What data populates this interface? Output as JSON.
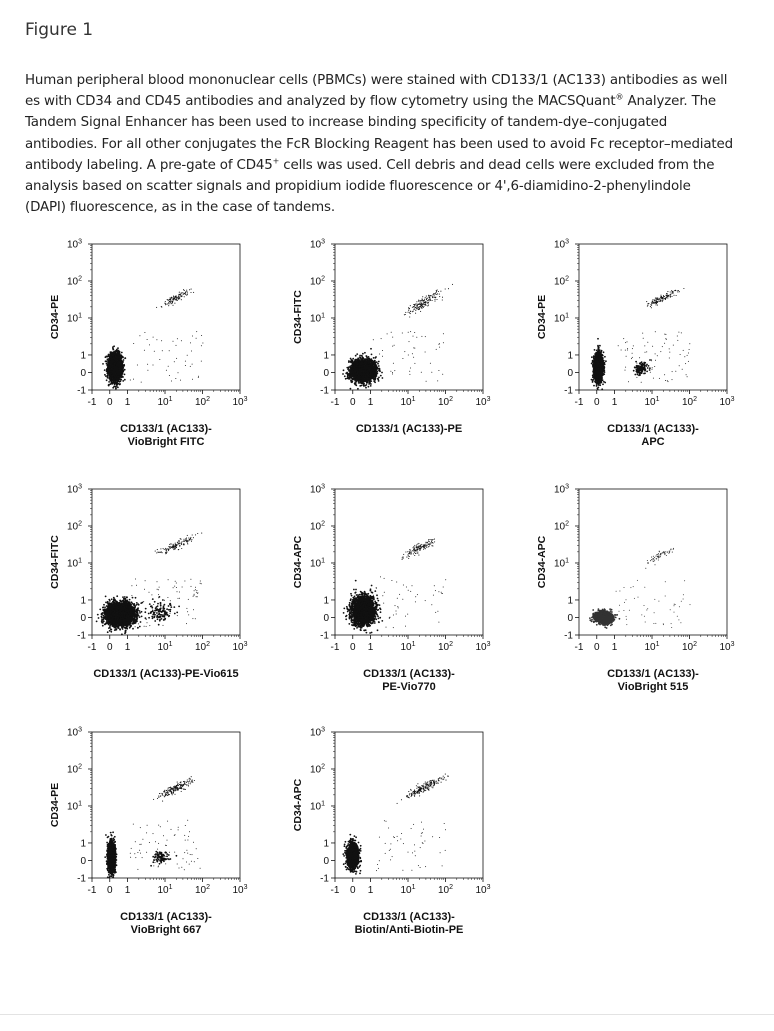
{
  "figure": {
    "title": "Figure 1",
    "caption_lines": [
      "Human peripheral blood mononuclear cells (PBMCs) were stained with CD133/1 (AC133) antibodies as well",
      "es with CD34 and CD45 antibodies and analyzed by flow cytometry using the MACSQuant",
      " Analyzer. The",
      "Tandem Signal Enhancer has been used to increase binding specificity of tandem-dye–conjugated",
      "antibodies. For all other conjugates the FcR Blocking Reagent has been used to avoid Fc receptor–mediated",
      "antibody labeling. A pre-gate of CD45",
      " cells was used. Cell debris and dead cells were excluded from the",
      "analysis based on scatter signals and propidium iodide fluorescence or 4',6-diamidino-2-phenylindole",
      "(DAPI) fluorescence, as in the case of tandems."
    ],
    "sup_registered": "®",
    "sup_plus": "+"
  },
  "axis": {
    "y_ticks": [
      {
        "value": -1,
        "text": "-1"
      },
      {
        "value": 0,
        "text": "0"
      },
      {
        "value": 1,
        "text": "1"
      },
      {
        "value": 10,
        "text": "10",
        "exp": "1"
      },
      {
        "value": 100,
        "text": "10",
        "exp": "2"
      },
      {
        "value": 1000,
        "text": "10",
        "exp": "3"
      }
    ],
    "x_ticks": [
      {
        "value": -1,
        "text": "-1"
      },
      {
        "value": 0,
        "text": "0"
      },
      {
        "value": 1,
        "text": "1"
      },
      {
        "value": 10,
        "text": "10",
        "exp": "1"
      },
      {
        "value": 100,
        "text": "10",
        "exp": "2"
      },
      {
        "value": 1000,
        "text": "10",
        "exp": "3"
      }
    ]
  },
  "chart_data": [
    {
      "type": "scatter",
      "ylabel": "CD34-PE",
      "xlabel": [
        "CD133/1 (AC133)-",
        "VioBright FITC"
      ],
      "xlim": [
        -1,
        1000
      ],
      "ylim": [
        -1,
        1000
      ],
      "populations": [
        {
          "cx": 0.3,
          "cy": 0.3,
          "sx": 0.55,
          "sy": 1.1,
          "count": 2600
        },
        {
          "cx": 20,
          "cy": 35,
          "sx": 0.55,
          "sy": 0.35,
          "count": 110,
          "spread": "diag"
        }
      ],
      "color": "#111111"
    },
    {
      "type": "scatter",
      "ylabel": "CD34-FITC",
      "xlabel": [
        "CD133/1 (AC133)-PE"
      ],
      "xlim": [
        -1,
        1000
      ],
      "ylim": [
        -1,
        1000
      ],
      "populations": [
        {
          "cx": 0.6,
          "cy": 0.1,
          "sx": 1.0,
          "sy": 0.9,
          "count": 2600
        },
        {
          "cx": 25,
          "cy": 25,
          "sx": 0.7,
          "sy": 0.5,
          "count": 170,
          "spread": "diag"
        }
      ],
      "color": "#111111"
    },
    {
      "type": "scatter",
      "ylabel": "CD34-PE",
      "xlabel": [
        "CD133/1 (AC133)-",
        "APC"
      ],
      "xlim": [
        -1,
        1000
      ],
      "ylim": [
        -1,
        1000
      ],
      "populations": [
        {
          "cx": 0.1,
          "cy": 0.3,
          "sx": 0.35,
          "sy": 1.1,
          "count": 2400
        },
        {
          "cx": 20,
          "cy": 35,
          "sx": 0.6,
          "sy": 0.35,
          "count": 140,
          "spread": "diag"
        },
        {
          "cx": 5,
          "cy": 0.2,
          "sx": 0.6,
          "sy": 0.6,
          "count": 120
        }
      ],
      "color": "#111111"
    },
    {
      "type": "scatter",
      "ylabel": "CD34-FITC",
      "xlabel": [
        "CD133/1 (AC133)-PE-Vio615"
      ],
      "xlim": [
        -1,
        1000
      ],
      "ylim": [
        -1,
        1000
      ],
      "populations": [
        {
          "cx": 0.6,
          "cy": 0.2,
          "sx": 1.2,
          "sy": 1.0,
          "count": 3000
        },
        {
          "cx": 20,
          "cy": 30,
          "sx": 0.7,
          "sy": 0.4,
          "count": 130,
          "spread": "diag"
        },
        {
          "cx": 8,
          "cy": 0.3,
          "sx": 1.1,
          "sy": 0.8,
          "count": 120
        }
      ],
      "color": "#111111"
    },
    {
      "type": "scatter",
      "ylabel": "CD34-APC",
      "xlabel": [
        "CD133/1 (AC133)-",
        "PE-Vio770"
      ],
      "xlim": [
        -1,
        1000
      ],
      "ylim": [
        -1,
        1000
      ],
      "populations": [
        {
          "cx": 0.6,
          "cy": 0.4,
          "sx": 0.95,
          "sy": 1.15,
          "count": 2800
        },
        {
          "cx": 20,
          "cy": 25,
          "sx": 0.6,
          "sy": 0.4,
          "count": 140,
          "spread": "diag"
        }
      ],
      "color": "#111111"
    },
    {
      "type": "scatter",
      "ylabel": "CD34-APC",
      "xlabel": [
        "CD133/1 (AC133)-",
        "VioBright 515"
      ],
      "xlim": [
        -1,
        1000
      ],
      "ylim": [
        -1,
        1000
      ],
      "populations": [
        {
          "cx": 0.4,
          "cy": 0.0,
          "sx": 0.7,
          "sy": 0.5,
          "count": 1400
        },
        {
          "cx": 15,
          "cy": 15,
          "sx": 0.6,
          "sy": 0.4,
          "count": 60,
          "spread": "diag"
        }
      ],
      "color": "#333333"
    },
    {
      "type": "scatter",
      "ylabel": "CD34-PE",
      "xlabel": [
        "CD133/1 (AC133)-",
        "VioBright 667"
      ],
      "xlim": [
        -1,
        1000
      ],
      "ylim": [
        -1,
        1000
      ],
      "populations": [
        {
          "cx": 0.1,
          "cy": 0.2,
          "sx": 0.3,
          "sy": 1.2,
          "count": 2000
        },
        {
          "cx": 20,
          "cy": 30,
          "sx": 0.65,
          "sy": 0.4,
          "count": 180,
          "spread": "diag"
        },
        {
          "cx": 8,
          "cy": 0.2,
          "sx": 0.7,
          "sy": 0.5,
          "count": 90
        }
      ],
      "color": "#111111"
    },
    {
      "type": "scatter",
      "ylabel": "CD34-APC",
      "xlabel": [
        "CD133/1 (AC133)-",
        "Biotin/Anti-Biotin-PE"
      ],
      "xlim": [
        -1,
        1000
      ],
      "ylim": [
        -1,
        1000
      ],
      "populations": [
        {
          "cx": 0.0,
          "cy": 0.3,
          "sx": 0.45,
          "sy": 1.0,
          "count": 2000
        },
        {
          "cx": 25,
          "cy": 30,
          "sx": 0.7,
          "sy": 0.45,
          "count": 200,
          "spread": "diag"
        }
      ],
      "color": "#111111"
    }
  ]
}
